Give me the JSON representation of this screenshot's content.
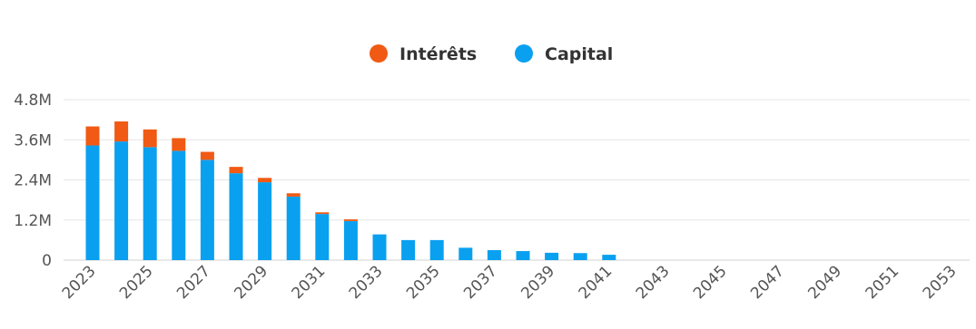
{
  "chart_data": {
    "type": "bar",
    "stacked": true,
    "title": "",
    "xlabel": "",
    "ylabel": "",
    "ylim": [
      0,
      4.8
    ],
    "grid": true,
    "legend_position": "top-center",
    "y_ticks": [
      {
        "value": 0,
        "label": "0"
      },
      {
        "value": 1.2,
        "label": "1.2M"
      },
      {
        "value": 2.4,
        "label": "2.4M"
      },
      {
        "value": 3.6,
        "label": "3.6M"
      },
      {
        "value": 4.8,
        "label": "4.8M"
      }
    ],
    "x_tick_labels": [
      "2023",
      "2025",
      "2027",
      "2029",
      "2031",
      "2033",
      "2035",
      "2037",
      "2039",
      "2041",
      "2043",
      "2045",
      "2047",
      "2049",
      "2051",
      "2053"
    ],
    "categories": [
      "2023",
      "2024",
      "2025",
      "2026",
      "2027",
      "2028",
      "2029",
      "2030",
      "2031",
      "2032",
      "2033",
      "2034",
      "2035",
      "2036",
      "2037",
      "2038",
      "2039",
      "2040",
      "2041",
      "2042",
      "2043",
      "2044",
      "2045",
      "2046",
      "2047",
      "2048",
      "2049",
      "2050",
      "2051",
      "2052",
      "2053"
    ],
    "series": [
      {
        "name": "Capital",
        "color": "#0aa0f0",
        "values": [
          3.43,
          3.55,
          3.38,
          3.27,
          3.0,
          2.6,
          2.33,
          1.9,
          1.38,
          1.17,
          0.77,
          0.6,
          0.6,
          0.37,
          0.3,
          0.27,
          0.22,
          0.21,
          0.16,
          0,
          0,
          0,
          0,
          0,
          0,
          0,
          0,
          0,
          0,
          0,
          0
        ]
      },
      {
        "name": "Intérêts",
        "color": "#f05a14",
        "values": [
          0.57,
          0.6,
          0.53,
          0.38,
          0.24,
          0.19,
          0.13,
          0.1,
          0.05,
          0.05,
          0,
          0,
          0,
          0,
          0,
          0,
          0,
          0,
          0,
          0,
          0,
          0,
          0,
          0,
          0,
          0,
          0,
          0,
          0,
          0,
          0
        ]
      }
    ]
  }
}
